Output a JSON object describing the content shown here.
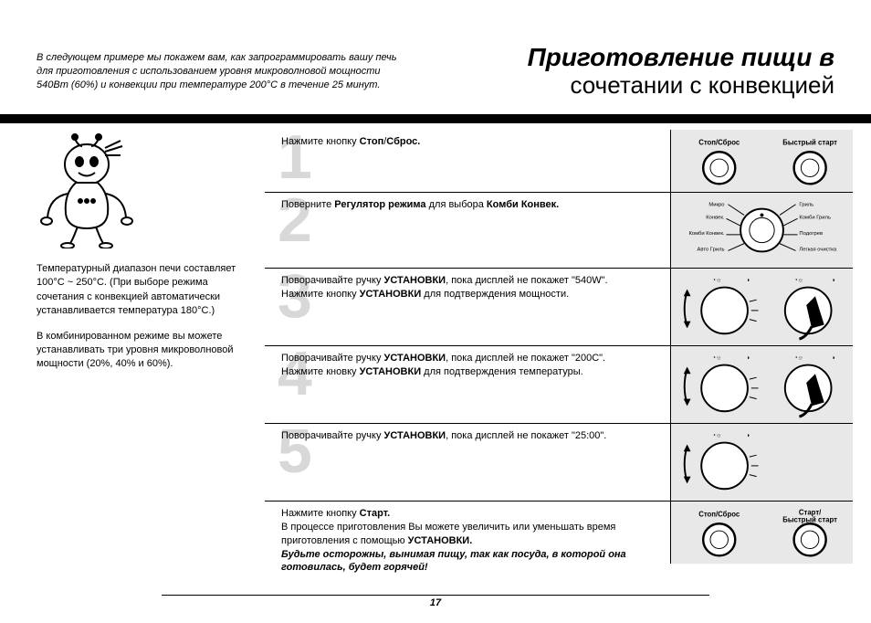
{
  "header": {
    "intro": "В следующем примере мы покажем вам, как запрограммировать вашу печь для приготовления с использованием уровня микроволновой мощности 540Вт (60%) и конвекции при температуре 200°C в течение 25 минут.",
    "title_line1": "Приготовление пищи в",
    "title_line2": "сочетании с конвекцией"
  },
  "left": {
    "para1": "Температурный диапазон печи составляет 100°C ~ 250°C. (При выборе режима сочетания с конвекцией автоматически устанавливается температура 180°C.)",
    "para2": "В комбинированном режиме вы можете устанавливать три уровня микроволновой мощности (20%, 40% и 60%)."
  },
  "steps": [
    {
      "num": "1",
      "segments": [
        {
          "t": "Нажмите кнопку "
        },
        {
          "t": "Стоп",
          "b": true
        },
        {
          "t": "/"
        },
        {
          "t": "Сброс.",
          "b": true
        }
      ],
      "img": "two-buttons",
      "img_labels": {
        "left": "Стоп/Сброс",
        "right": "Быстрый старт"
      }
    },
    {
      "num": "2",
      "segments": [
        {
          "t": "Поверните "
        },
        {
          "t": "Регулятор режима",
          "b": true
        },
        {
          "t": " для выбора "
        },
        {
          "t": "Комби Конвек.",
          "b": true
        }
      ],
      "img": "mode-dial",
      "dial_labels": {
        "tl": "Микро",
        "tr": "Гриль",
        "ml": "Конвек.",
        "mr": "Комби Гриль",
        "bl": "Комби Конвек.",
        "br": "Подогрев",
        "ll": "Авто Гриль",
        "lr": "Легкая очистка"
      }
    },
    {
      "num": "3",
      "segments": [
        {
          "t": "Поворачивайте ручку "
        },
        {
          "t": "УСТАНОВКИ",
          "b": true
        },
        {
          "t": ", пока дисплей не покажет \"540W\"."
        },
        {
          "br": true
        },
        {
          "t": "Нажмите кнопку "
        },
        {
          "t": "УСТАНОВКИ",
          "b": true
        },
        {
          "t": " для подтверждения мощности."
        }
      ],
      "img": "turn-press"
    },
    {
      "num": "4",
      "segments": [
        {
          "t": "Поворачивайте ручку "
        },
        {
          "t": "УСТАНОВКИ",
          "b": true
        },
        {
          "t": ", пока дисплей не покажет \"200C\"."
        },
        {
          "br": true
        },
        {
          "t": "Нажмите кновку "
        },
        {
          "t": "УСТАНОВКИ",
          "b": true
        },
        {
          "t": " для подтверждения температуры."
        }
      ],
      "img": "turn-press"
    },
    {
      "num": "5",
      "segments": [
        {
          "t": "Поворачивайте ручку "
        },
        {
          "t": "УСТАНОВКИ",
          "b": true
        },
        {
          "t": ", пока дисплей не покажет \"25:00\"."
        }
      ],
      "img": "turn-only"
    },
    {
      "num": "",
      "segments": [
        {
          "t": "Нажмите кнопку "
        },
        {
          "t": "Старт.",
          "b": true
        },
        {
          "br": true
        },
        {
          "t": "В процессе приготовления Вы можете увеличить или уменьшать время приготовления с помощью "
        },
        {
          "t": "УСТАНОВКИ.",
          "b": true
        },
        {
          "br": true
        },
        {
          "t": "Будьте осторожны, вынимая пищу, так как посуда, в которой она готовилась, будет горячей!",
          "bi": true
        }
      ],
      "img": "two-buttons-start",
      "img_labels": {
        "left": "Стоп/Сброс",
        "right_top": "Старт/",
        "right": "Быстрый старт"
      }
    }
  ],
  "page_number": "17",
  "colors": {
    "bg": "#ffffff",
    "text": "#000000",
    "num_gray": "#d8d8d8",
    "img_bg": "#e8e8e8"
  }
}
